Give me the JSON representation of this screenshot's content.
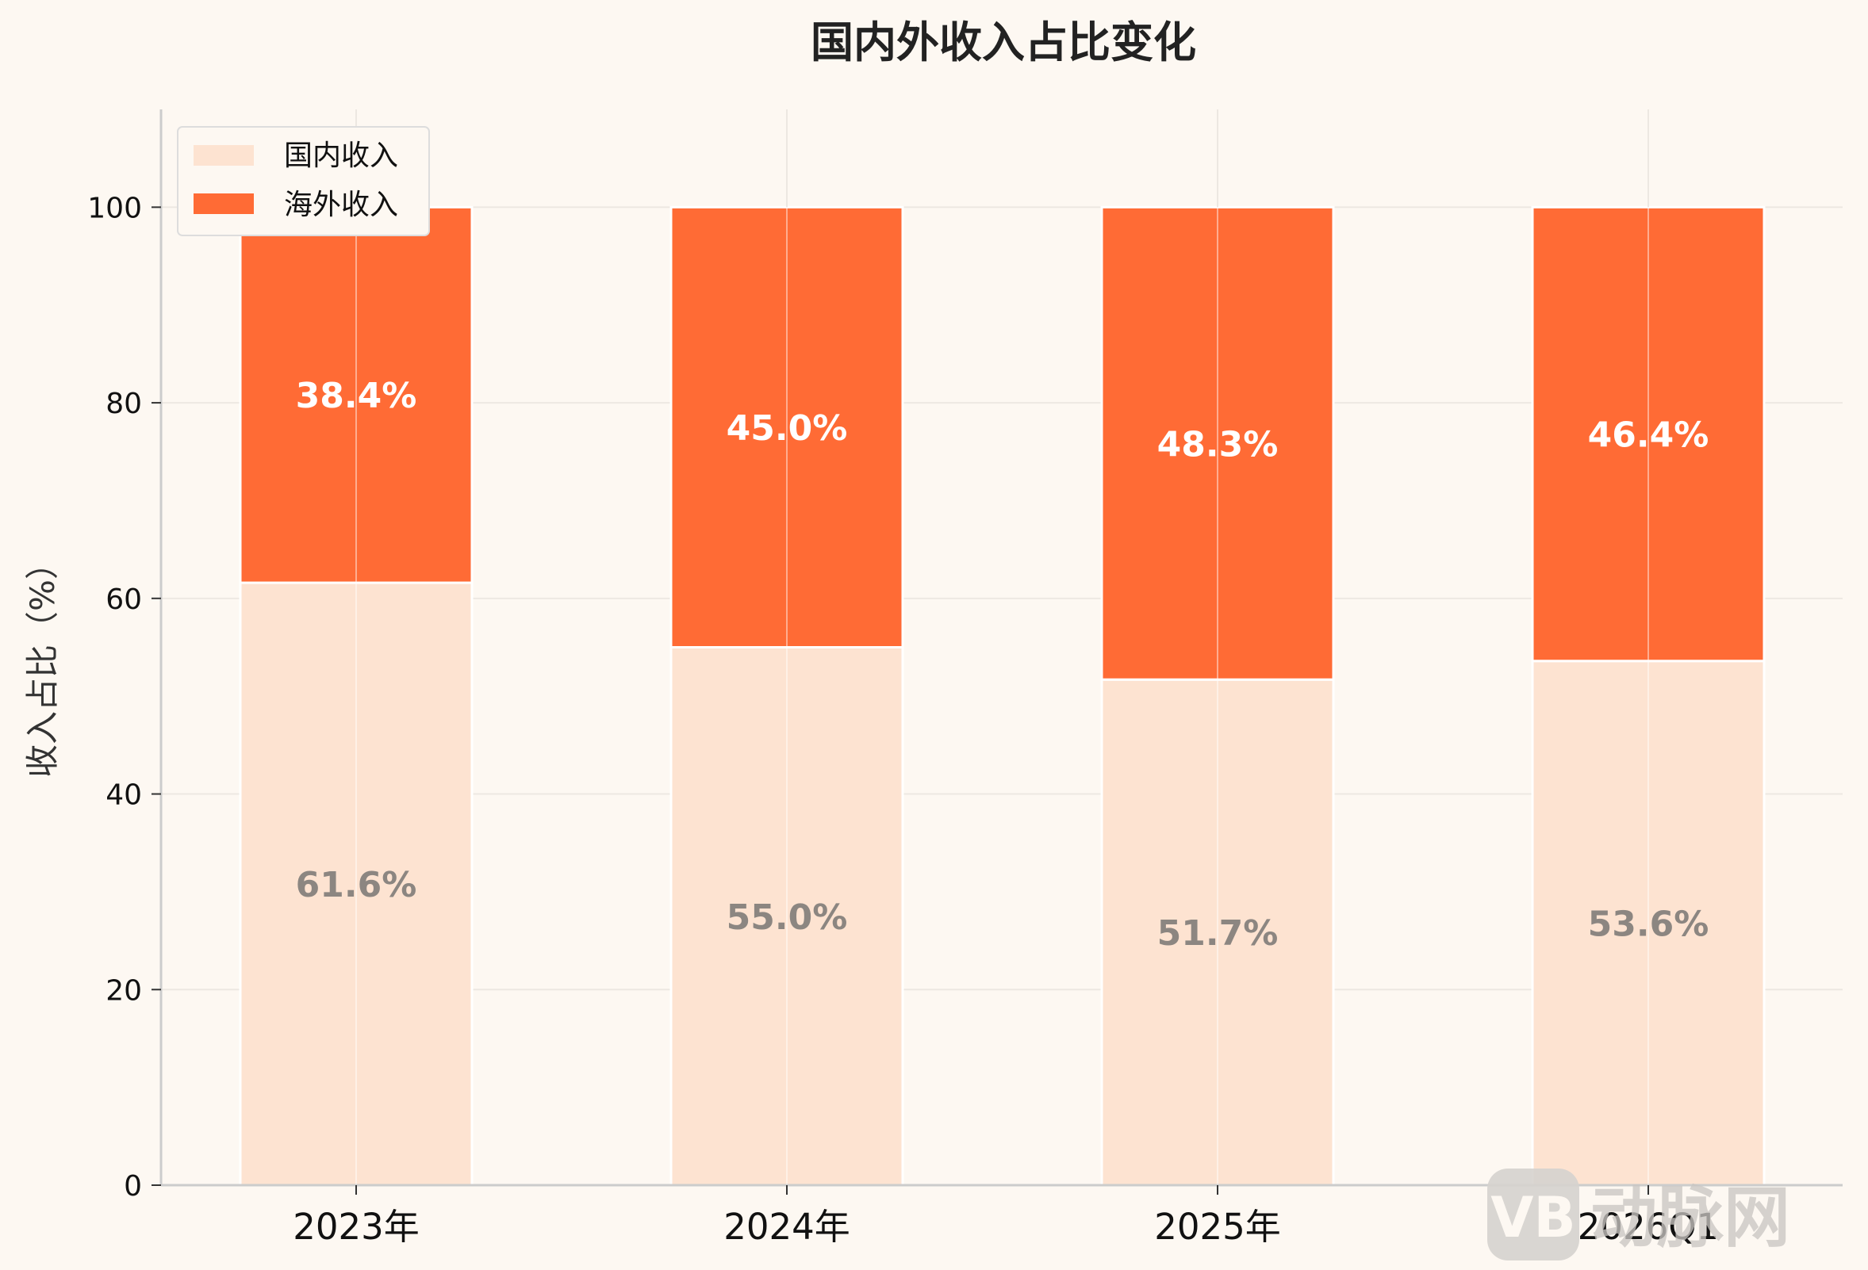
{
  "chart_data": {
    "type": "bar",
    "stacked": true,
    "title": "国内外收入占比变化",
    "xlabel": "",
    "ylabel": "收入占比（%）",
    "categories": [
      "2023年",
      "2024年",
      "2025年",
      "2026Q1"
    ],
    "series": [
      {
        "name": "国内收入",
        "values": [
          61.6,
          55.0,
          51.7,
          53.6
        ],
        "labels": [
          "61.6%",
          "55.0%",
          "51.7%",
          "53.6%"
        ],
        "color": "#fde3d1",
        "label_color": "#8c8681"
      },
      {
        "name": "海外收入",
        "values": [
          38.4,
          45.0,
          48.3,
          46.4
        ],
        "labels": [
          "38.4%",
          "45.0%",
          "48.3%",
          "46.4%"
        ],
        "color": "#ff6b35",
        "label_color": "#ffffff"
      }
    ],
    "ylim": [
      0,
      110
    ],
    "yticks": [
      "0",
      "20",
      "40",
      "60",
      "80",
      "100"
    ],
    "grid": true,
    "legend_position": "top-left"
  },
  "watermark": {
    "text": "动脉网",
    "logo": "VB"
  },
  "colors": {
    "background": "#fdf8f2",
    "grid": "#ede8e2",
    "axis": "#cccccc"
  }
}
